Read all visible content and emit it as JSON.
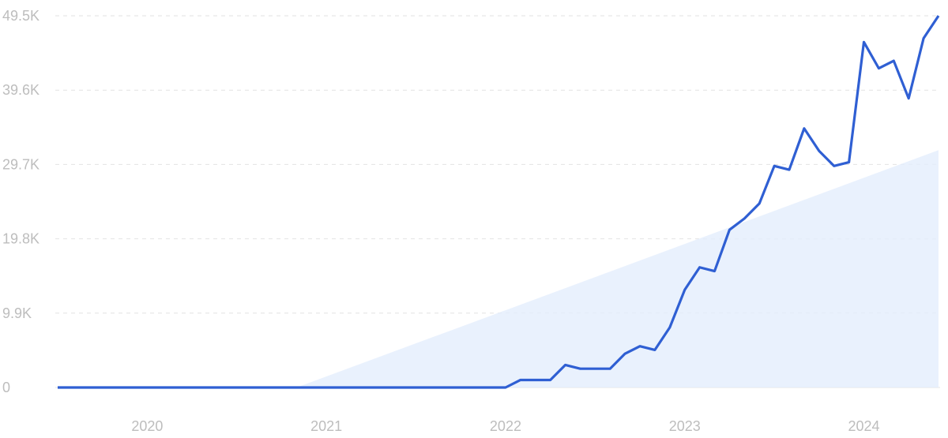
{
  "chart_data": {
    "type": "line",
    "categories": [
      null,
      null,
      null,
      null,
      null,
      null,
      "2020",
      null,
      null,
      null,
      null,
      null,
      null,
      null,
      null,
      null,
      null,
      null,
      "2021",
      null,
      null,
      null,
      null,
      null,
      null,
      null,
      null,
      null,
      null,
      null,
      "2022",
      null,
      null,
      null,
      null,
      null,
      null,
      null,
      null,
      null,
      null,
      null,
      "2023",
      null,
      null,
      null,
      null,
      null,
      null,
      null,
      null,
      null,
      null,
      null,
      "2024",
      null,
      null,
      null,
      null,
      null
    ],
    "series": [
      {
        "color": "#2f5fd3",
        "values": [
          0,
          0,
          0,
          0,
          0,
          0,
          0,
          0,
          0,
          0,
          0,
          0,
          0,
          0,
          0,
          0,
          0,
          0,
          0,
          0,
          0,
          0,
          0,
          0,
          0,
          0,
          0,
          0,
          0,
          0,
          0,
          1000,
          1000,
          1000,
          3000,
          2500,
          2500,
          2500,
          4500,
          5500,
          5000,
          8000,
          13000,
          16000,
          15500,
          21000,
          22500,
          24500,
          29500,
          29000,
          34500,
          31500,
          29500,
          30000,
          46000,
          42500,
          43500,
          38500,
          46500,
          49500
        ]
      },
      {
        "color": "#e3eefc",
        "area": true,
        "values": [
          null,
          null,
          null,
          null,
          null,
          null,
          null,
          null,
          null,
          null,
          null,
          null,
          null,
          null,
          null,
          null,
          0,
          735,
          1470,
          2205,
          2940,
          3675,
          4410,
          5145,
          5880,
          6615,
          7350,
          8085,
          8820,
          9555,
          10290,
          11025,
          11760,
          12495,
          13230,
          13965,
          14700,
          15435,
          16170,
          16905,
          17640,
          18375,
          19110,
          19845,
          20580,
          21315,
          22050,
          22785,
          23520,
          24255,
          24990,
          25725,
          26460,
          27195,
          27930,
          28665,
          29400,
          30135,
          30870,
          31605
        ]
      }
    ],
    "ylim": [
      0,
      49500
    ],
    "yticks": [
      {
        "value": 0,
        "label": "0"
      },
      {
        "value": 9900,
        "label": "9.9K"
      },
      {
        "value": 19800,
        "label": "19.8K"
      },
      {
        "value": 29700,
        "label": "29.7K"
      },
      {
        "value": 39600,
        "label": "39.6K"
      },
      {
        "value": 49500,
        "label": "49.5K"
      }
    ],
    "grid": true
  }
}
